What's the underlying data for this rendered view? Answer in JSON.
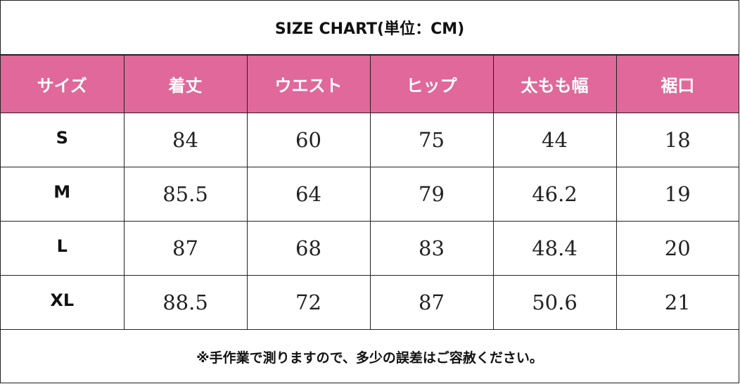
{
  "title": "SIZE CHART(単位：CM)",
  "headers": [
    "サイズ",
    "着丈",
    "ウエスト",
    "ヒップ",
    "太もも幅",
    "裾口"
  ],
  "rows": [
    {
      "size": "S",
      "values": [
        "84",
        "60",
        "75",
        "44",
        "18"
      ]
    },
    {
      "size": "M",
      "values": [
        "85.5",
        "64",
        "79",
        "46.2",
        "19"
      ]
    },
    {
      "size": "L",
      "values": [
        "87",
        "68",
        "83",
        "48.4",
        "20"
      ]
    },
    {
      "size": "XL",
      "values": [
        "88.5",
        "72",
        "87",
        "50.6",
        "21"
      ]
    }
  ],
  "note": "※手作業で測りますので、多少の誤差はご容赦ください。",
  "colors": {
    "header_bg": "#e0689a",
    "header_text": "#ffffff",
    "border": "#222222"
  }
}
